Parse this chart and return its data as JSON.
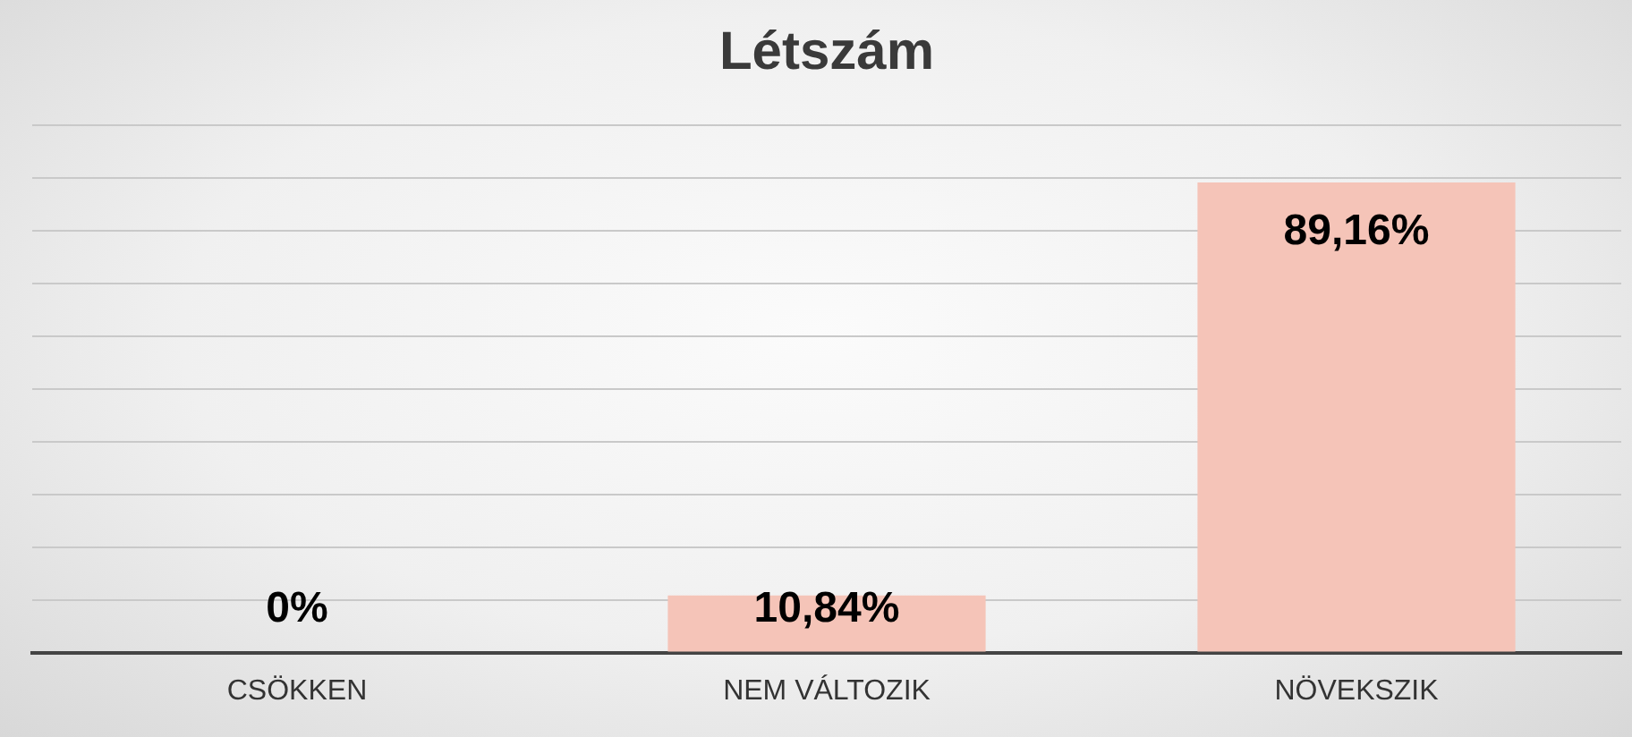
{
  "chart_data": {
    "type": "bar",
    "title": "Létszám",
    "categories": [
      "CSÖKKEN",
      "NEM VÁLTOZIK",
      "NÖVEKSZIK"
    ],
    "values": [
      0,
      10.84,
      89.16
    ],
    "value_labels": [
      "0%",
      "10,84%",
      "89,16%"
    ],
    "color": "#f5c4b8",
    "tick_labels": "x",
    "grid": "y",
    "legend": false
  }
}
